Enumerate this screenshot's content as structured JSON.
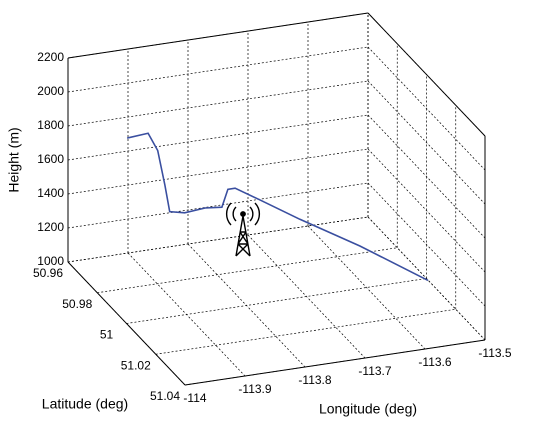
{
  "chart_data": {
    "type": "line3d",
    "xlabel": "Longitude (deg)",
    "ylabel": "Latitude (deg)",
    "zlabel": "Height (m)",
    "xlim": [
      -114,
      -113.5
    ],
    "ylim": [
      50.96,
      51.04
    ],
    "zlim": [
      1000,
      2200
    ],
    "xticks": [
      -114,
      -113.9,
      -113.8,
      -113.7,
      -113.6,
      -113.5
    ],
    "yticks": [
      50.96,
      50.98,
      51,
      51.02,
      51.04
    ],
    "zticks": [
      1000,
      1200,
      1400,
      1600,
      1800,
      2000,
      2200
    ],
    "grid": true,
    "line": {
      "color": "#3a4fa0",
      "x": [
        -113.999,
        -113.964,
        -113.948,
        -113.936,
        -113.928,
        -113.903,
        -113.869,
        -113.841,
        -113.831,
        -113.819,
        -113.778,
        -113.711,
        -113.611,
        -113.517
      ],
      "y": [
        51,
        51,
        51,
        51,
        51,
        51,
        51,
        51,
        51,
        51,
        51,
        51,
        51,
        51.008
      ],
      "z": [
        2090,
        2100,
        1990,
        1780,
        1620,
        1600,
        1610,
        1600,
        1700,
        1700,
        1610,
        1460,
        1250,
        1070
      ]
    }
  }
}
